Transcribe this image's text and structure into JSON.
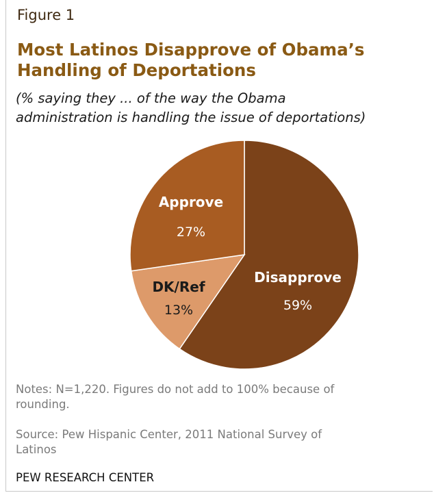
{
  "figure_label": "Figure 1",
  "chart_data": {
    "type": "pie",
    "title_lines": [
      "Most Latinos Disapprove of Obama’s",
      "Handling of Deportations"
    ],
    "subtitle_lines": [
      "(% saying they ... of the way the Obama",
      "administration is handling the issue of deportations)"
    ],
    "slices": [
      {
        "label": "Disapprove",
        "value": 59,
        "value_label": "59%",
        "color": "#7b4219"
      },
      {
        "label": "DK/Ref",
        "value": 13,
        "value_label": "13%",
        "color": "#dd9a6a"
      },
      {
        "label": "Approve",
        "value": 27,
        "value_label": "27%",
        "color": "#a85c22"
      }
    ]
  },
  "notes_lines": [
    "Notes: N=1,220. Figures do not add to 100% because of",
    "rounding."
  ],
  "source_lines": [
    "Source: Pew Hispanic Center, 2011 National Survey of",
    "Latinos"
  ],
  "org": "PEW RESEARCH CENTER"
}
